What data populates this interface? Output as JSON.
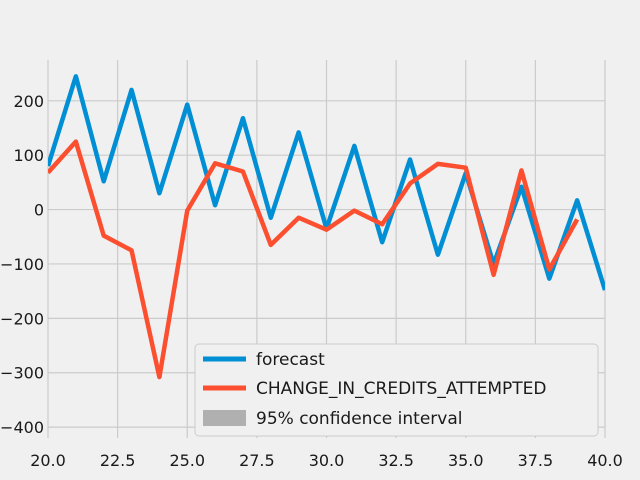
{
  "chart_data": {
    "type": "line",
    "title": "",
    "xlabel": "",
    "ylabel": "",
    "xlim": [
      20,
      40
    ],
    "ylim": [
      -420,
      275
    ],
    "grid": true,
    "legend_position": "bottom-right",
    "x_ticks": [
      20,
      22.5,
      25,
      27.5,
      30,
      32.5,
      35,
      37.5,
      40
    ],
    "x_tick_labels": [
      "20.0",
      "22.5",
      "25.0",
      "27.5",
      "30.0",
      "32.5",
      "35.0",
      "37.5",
      "40.0"
    ],
    "y_ticks": [
      -400,
      -300,
      -200,
      -100,
      0,
      100,
      200
    ],
    "y_tick_labels": [
      "−400",
      "−300",
      "−200",
      "−100",
      "0",
      "100",
      "200"
    ],
    "series": [
      {
        "name": "forecast",
        "color": "#008fd5",
        "x": [
          20,
          21,
          22,
          23,
          24,
          25,
          26,
          27,
          28,
          29,
          30,
          31,
          32,
          33,
          34,
          35,
          36,
          37,
          38,
          39,
          40
        ],
        "values": [
          80,
          245,
          52,
          220,
          30,
          193,
          8,
          168,
          -15,
          142,
          -35,
          117,
          -60,
          92,
          -83,
          67,
          -100,
          42,
          -127,
          17,
          -148
        ]
      },
      {
        "name": "CHANGE_IN_CREDITS_ATTEMPTED",
        "color": "#fc4f30",
        "x": [
          20,
          21,
          22,
          23,
          24,
          25,
          26,
          27,
          28,
          29,
          30,
          31,
          32,
          33,
          34,
          35,
          36,
          37,
          38,
          39
        ],
        "values": [
          68,
          125,
          -48,
          -75,
          -308,
          -2,
          85,
          70,
          -65,
          -15,
          -37,
          -2,
          -27,
          48,
          84,
          77,
          -120,
          72,
          -110,
          -18
        ]
      }
    ],
    "confidence_interval": {
      "name": "95% confidence interval",
      "color": "#b0b0b0"
    }
  }
}
